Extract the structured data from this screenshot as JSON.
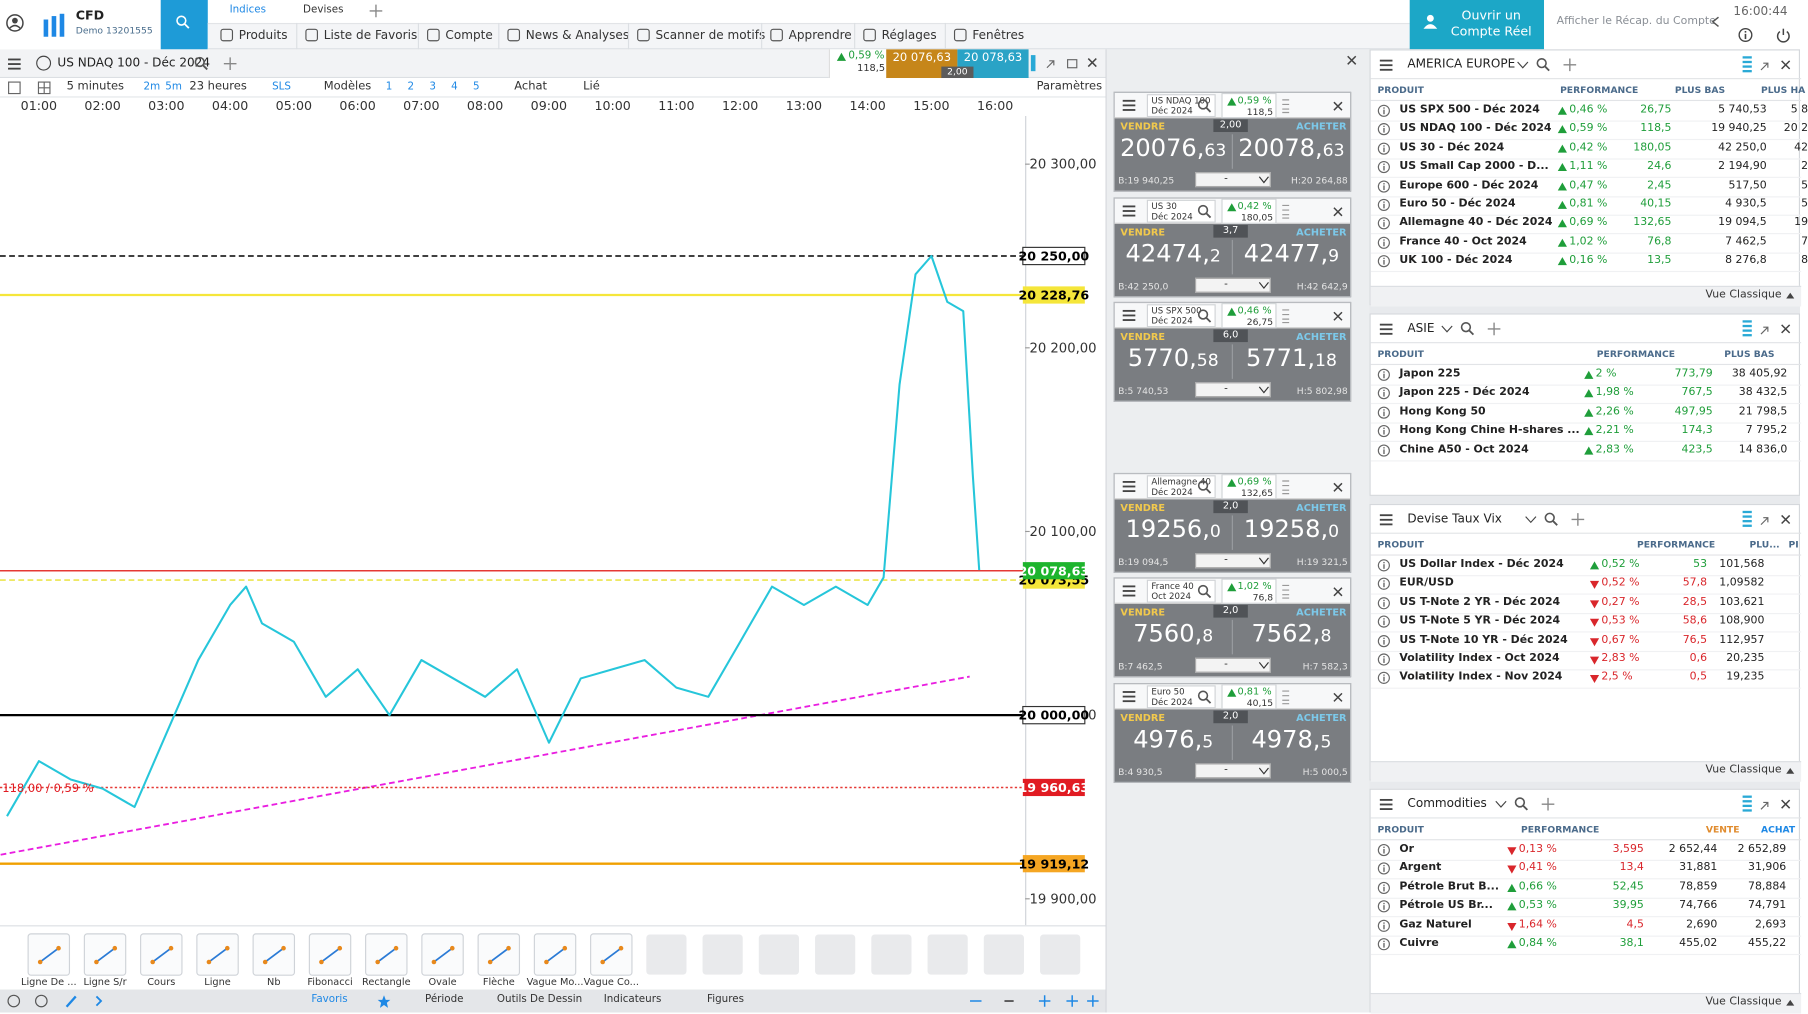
{
  "header": {
    "brand": "CFD",
    "account": "Demo 13201555",
    "tabs": [
      "Indices",
      "Devises"
    ],
    "menu": [
      "Produits",
      "Liste de Favoris",
      "Compte",
      "News & Analyses",
      "Scanner de motifs",
      "Apprendre",
      "Réglages",
      "Fenêtres"
    ],
    "open_account": "Ouvrir un Compte Réel",
    "recap": "Afficher le Récap. du Compte",
    "time": "16:00:44"
  },
  "chart_window": {
    "title": "US NDAQ 100 - Déc 2024",
    "dir": "up",
    "change": "0,59 %",
    "points": "118,5",
    "sell": "20 076,63",
    "buy": "20 078,63",
    "spread": "2,00",
    "toolbar": {
      "interval": "5 minutes",
      "periods": [
        "2m",
        "5m"
      ],
      "range": "23 heures",
      "sls": "SLS",
      "templates": "Modèles",
      "layouts": [
        "1",
        "2",
        "3",
        "4",
        "5"
      ],
      "side": "Achat",
      "link": "Lié",
      "settings": "Paramètres"
    },
    "tools": [
      "Ligne De ...",
      "Ligne S/r",
      "Cours",
      "Ligne",
      "Nb",
      "Fibonacci",
      "Rectangle",
      "Ovale",
      "Flèche",
      "Vague Mo...",
      "Vague Co..."
    ],
    "tabs": [
      "Favoris",
      "Période",
      "Outils De Dessin",
      "Indicateurs",
      "Figures"
    ]
  },
  "chart_data": {
    "type": "line",
    "color": "#26c6da",
    "x": [
      0.5,
      1,
      1.5,
      2,
      2.5,
      3,
      3.5,
      4,
      4.25,
      4.5,
      5,
      5.5,
      6,
      6.5,
      7,
      7.5,
      8,
      8.5,
      9,
      9.5,
      10,
      10.5,
      11,
      11.5,
      12,
      12.5,
      13,
      13.5,
      14,
      14.25,
      14.5,
      14.75,
      15,
      15.25,
      15.5,
      15.65,
      15.75
    ],
    "values": [
      19945,
      19975,
      19965,
      19960,
      19950,
      19990,
      20030,
      20060,
      20070,
      20050,
      20040,
      20010,
      20025,
      20000,
      20030,
      20020,
      20010,
      20025,
      19985,
      20020,
      20025,
      20030,
      20015,
      20010,
      20040,
      20070,
      20060,
      20070,
      20060,
      20075,
      20180,
      20240,
      20250,
      20225,
      20220,
      20130,
      20079
    ],
    "xlim": [
      0.39,
      16.47
    ],
    "ylim": [
      19885.6,
      20326.25
    ],
    "xticks": [
      {
        "value": 1,
        "label": "01:00"
      },
      {
        "value": 2,
        "label": "02:00"
      },
      {
        "value": 3,
        "label": "03:00"
      },
      {
        "value": 4,
        "label": "04:00"
      },
      {
        "value": 5,
        "label": "05:00"
      },
      {
        "value": 6,
        "label": "06:00"
      },
      {
        "value": 7,
        "label": "07:00"
      },
      {
        "value": 8,
        "label": "08:00"
      },
      {
        "value": 9,
        "label": "09:00"
      },
      {
        "value": 10,
        "label": "10:00"
      },
      {
        "value": 11,
        "label": "11:00"
      },
      {
        "value": 12,
        "label": "12:00"
      },
      {
        "value": 13,
        "label": "13:00"
      },
      {
        "value": 14,
        "label": "14:00"
      },
      {
        "value": 15,
        "label": "15:00"
      },
      {
        "value": 16,
        "label": "16:00"
      }
    ],
    "yticks": [
      {
        "value": 20300,
        "label": "20 300,00"
      },
      {
        "value": 20200,
        "label": "20 200,00"
      },
      {
        "value": 20100,
        "label": "20 100,00"
      },
      {
        "value": 20000,
        "label": "20 000,00"
      },
      {
        "value": 19900,
        "label": "19 900,00"
      }
    ],
    "levels": [
      {
        "value": 20250,
        "label": "20 250,00",
        "color": "#000000",
        "style": "dashed",
        "label_fill": "#ffffff",
        "label_text": "#000000"
      },
      {
        "value": 20228.76,
        "label": "20 228,76",
        "color": "#f5e63a",
        "style": "solid",
        "label_fill": "#f5e63a",
        "label_text": "#000000"
      },
      {
        "value": 20073.55,
        "label": "20 073,55",
        "color": "#e8e030",
        "style": "dashed",
        "label_fill": "#f5e63a",
        "label_text": "#000000"
      },
      {
        "value": 20078.63,
        "label": "20 078,63",
        "color": "#e53935",
        "style": "solid",
        "label_fill": "#1db42d",
        "label_text": "#ffffff"
      },
      {
        "value": 20000,
        "label": "20 000,00",
        "color": "#000000",
        "style": "solid",
        "label_fill": "#ffffff",
        "label_text": "#000000"
      },
      {
        "value": 19960.63,
        "label": "19 960,63",
        "color": "#e53935",
        "style": "dotted",
        "label_fill": "#e11b22",
        "label_text": "#ffffff"
      },
      {
        "value": 19919.12,
        "label": "19 919,12",
        "color": "#f0a000",
        "style": "solid",
        "label_fill": "#f5a623",
        "label_text": "#000000"
      }
    ],
    "trendline": {
      "x": [
        0.4,
        15.6
      ],
      "values": [
        19924,
        20021
      ],
      "color": "#e91ee0"
    },
    "annotation": "118,00 / 0,59 %"
  },
  "ticket_labels": {
    "sell": "VENDRE",
    "buy": "ACHETER",
    "quantity": "-"
  },
  "tickets": [
    {
      "name": "US NDAQ 100",
      "expiry": "Déc 2024",
      "dir": "up",
      "change": "0,59 %",
      "points": "118,5",
      "spread": "2,00",
      "sell": [
        "20076,",
        "63"
      ],
      "buy": [
        "20078,",
        "63"
      ],
      "low": "B:19 940,25",
      "high": "H:20 264,88"
    },
    {
      "name": "US 30",
      "expiry": "Déc 2024",
      "dir": "up",
      "change": "0,42 %",
      "points": "180,05",
      "spread": "3,7",
      "sell": [
        "42474,",
        "2"
      ],
      "buy": [
        "42477,",
        "9"
      ],
      "low": "B:42 250,0",
      "high": "H:42 642,9"
    },
    {
      "name": "US SPX 500",
      "expiry": "Déc 2024",
      "dir": "up",
      "change": "0,46 %",
      "points": "26,75",
      "spread": "6,0",
      "sell": [
        "5770,",
        "58"
      ],
      "buy": [
        "5771,",
        "18"
      ],
      "low": "B:5 740,53",
      "high": "H:5 802,98"
    },
    {
      "name": "Allemagne 40",
      "expiry": "Déc 2024",
      "dir": "up",
      "change": "0,69 %",
      "points": "132,65",
      "spread": "2,0",
      "sell": [
        "19256,",
        "0"
      ],
      "buy": [
        "19258,",
        "0"
      ],
      "low": "B:19 094,5",
      "high": "H:19 321,5"
    },
    {
      "name": "France 40",
      "expiry": "Oct 2024",
      "dir": "up",
      "change": "1,02 %",
      "points": "76,8",
      "spread": "2,0",
      "sell": [
        "7560,",
        "8"
      ],
      "buy": [
        "7562,",
        "8"
      ],
      "low": "B:7 462,5",
      "high": "H:7 582,3"
    },
    {
      "name": "Euro 50",
      "expiry": "Déc 2024",
      "dir": "up",
      "change": "0,81 %",
      "points": "40,15",
      "spread": "2,0",
      "sell": [
        "4976,",
        "5"
      ],
      "buy": [
        "4978,",
        "5"
      ],
      "low": "B:4 930,5",
      "high": "H:5 000,5"
    }
  ],
  "panels": [
    {
      "title": "AMERICA EUROPE",
      "columns": [
        "PRODUIT",
        "PERFORMANCE",
        "PLUS BAS",
        "PLUS HA"
      ],
      "rows": [
        {
          "dir": "up",
          "cells": [
            "US SPX 500 - Déc 2024",
            "0,46 %",
            "26,75",
            "5 740,53",
            "5 8"
          ]
        },
        {
          "dir": "up",
          "cells": [
            "US NDAQ 100 - Déc 2024",
            "0,59 %",
            "118,5",
            "19 940,25",
            "20 2"
          ]
        },
        {
          "dir": "up",
          "cells": [
            "US 30 - Déc 2024",
            "0,42 %",
            "180,05",
            "42 250,0",
            "42"
          ]
        },
        {
          "dir": "up",
          "cells": [
            "US Small Cap 2000 - D...",
            "1,11 %",
            "24,6",
            "2 194,90",
            "2"
          ]
        },
        {
          "dir": "up",
          "cells": [
            "Europe 600 - Déc 2024",
            "0,47 %",
            "2,45",
            "517,50",
            "5"
          ]
        },
        {
          "dir": "up",
          "cells": [
            "Euro 50 - Déc 2024",
            "0,81 %",
            "40,15",
            "4 930,5",
            "5"
          ]
        },
        {
          "dir": "up",
          "cells": [
            "Allemagne 40 - Déc 2024",
            "0,69 %",
            "132,65",
            "19 094,5",
            "19"
          ]
        },
        {
          "dir": "up",
          "cells": [
            "France 40 - Oct 2024",
            "1,02 %",
            "76,8",
            "7 462,5",
            "7"
          ]
        },
        {
          "dir": "up",
          "cells": [
            "UK 100 - Déc 2024",
            "0,16 %",
            "13,5",
            "8 276,8",
            "8"
          ]
        }
      ],
      "footer": "Vue Classique"
    },
    {
      "title": "ASIE",
      "columns": [
        "PRODUIT",
        "PERFORMANCE",
        "PLUS BAS"
      ],
      "rows": [
        {
          "dir": "up",
          "cells": [
            "Japon 225",
            "2 %",
            "773,79",
            "38 405,92"
          ]
        },
        {
          "dir": "up",
          "cells": [
            "Japon 225 - Déc 2024",
            "1,98 %",
            "767,5",
            "38 432,5"
          ]
        },
        {
          "dir": "up",
          "cells": [
            "Hong Kong 50",
            "2,26 %",
            "497,95",
            "21 798,5"
          ]
        },
        {
          "dir": "up",
          "cells": [
            "Hong Kong Chine H-shares ...",
            "2,21 %",
            "174,3",
            "7 795,2"
          ]
        },
        {
          "dir": "up",
          "cells": [
            "Chine A50 - Oct 2024",
            "2,83 %",
            "423,5",
            "14 836,0"
          ]
        }
      ]
    },
    {
      "title": "Devise Taux Vix",
      "columns": [
        "PRODUIT",
        "PERFORMANCE",
        "PLU...",
        "PI"
      ],
      "rows": [
        {
          "dir": "up",
          "cells": [
            "US Dollar Index - Déc 2024",
            "0,52 %",
            "53",
            "101,568"
          ]
        },
        {
          "dir": "down",
          "cells": [
            "EUR/USD",
            "0,52 %",
            "57,8",
            "1,09582"
          ]
        },
        {
          "dir": "down",
          "cells": [
            "US T-Note 2 YR - Déc 2024",
            "0,27 %",
            "28,5",
            "103,621"
          ]
        },
        {
          "dir": "down",
          "cells": [
            "US T-Note 5 YR - Déc 2024",
            "0,53 %",
            "58,6",
            "108,900"
          ]
        },
        {
          "dir": "down",
          "cells": [
            "US T-Note 10 YR - Déc 2024",
            "0,67 %",
            "76,5",
            "112,957"
          ]
        },
        {
          "dir": "down",
          "cells": [
            "Volatility Index - Oct 2024",
            "2,83 %",
            "0,6",
            "20,235"
          ]
        },
        {
          "dir": "down",
          "cells": [
            "Volatility Index - Nov 2024",
            "2,5 %",
            "0,5",
            "19,235"
          ]
        }
      ],
      "footer": "Vue Classique"
    },
    {
      "title": "Commodities",
      "columns": [
        "PRODUIT",
        "PERFORMANCE",
        "VENTE",
        "ACHAT"
      ],
      "rows": [
        {
          "dir": "down",
          "cells": [
            "Or",
            "0,13 %",
            "3,595",
            "2 652,44",
            "2 652,89"
          ]
        },
        {
          "dir": "down",
          "cells": [
            "Argent",
            "0,41 %",
            "13,4",
            "31,881",
            "31,906"
          ]
        },
        {
          "dir": "up",
          "cells": [
            "Pétrole Brut B...",
            "0,66 %",
            "52,45",
            "78,859",
            "78,884"
          ]
        },
        {
          "dir": "up",
          "cells": [
            "Pétrole US Br...",
            "0,53 %",
            "39,95",
            "74,766",
            "74,791"
          ]
        },
        {
          "dir": "down",
          "cells": [
            "Gaz Naturel",
            "1,64 %",
            "4,5",
            "2,690",
            "2,693"
          ]
        },
        {
          "dir": "up",
          "cells": [
            "Cuivre",
            "0,84 %",
            "38,1",
            "455,02",
            "455,22"
          ]
        }
      ],
      "footer": "Vue Classique"
    }
  ]
}
